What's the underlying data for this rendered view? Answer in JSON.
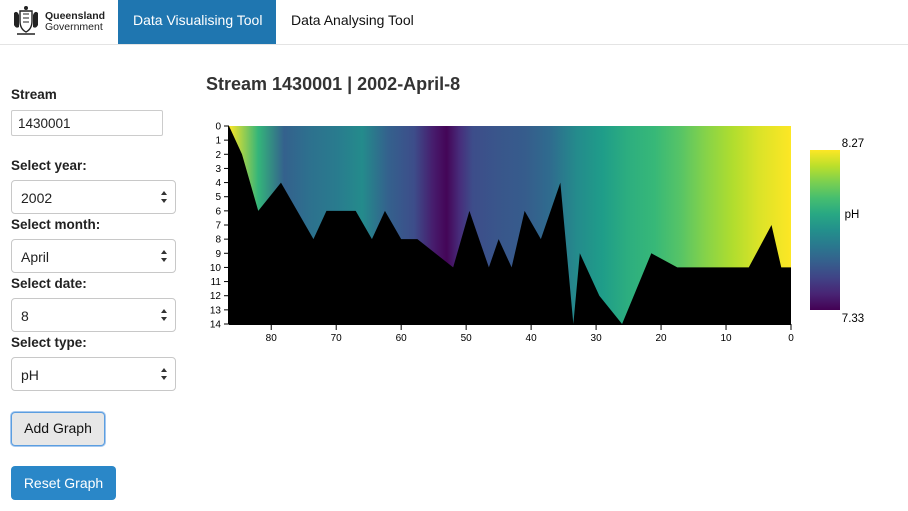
{
  "brand": {
    "line1": "Queensland",
    "line2": "Government"
  },
  "nav": {
    "tabs": [
      {
        "label": "Data Visualising Tool",
        "active": true
      },
      {
        "label": "Data Analysing Tool",
        "active": false
      }
    ],
    "accent": "#1f76b0"
  },
  "sidebar": {
    "stream_label": "Stream",
    "stream_value": "1430001",
    "year_label": "Select year:",
    "year_value": "2002",
    "month_label": "Select month:",
    "month_value": "April",
    "date_label": "Select date:",
    "date_value": "8",
    "type_label": "Select type:",
    "type_value": "pH",
    "add_button": "Add Graph",
    "reset_button": "Reset Graph"
  },
  "chart_data": {
    "type": "heatmap",
    "title": "Stream 1430001 | 2002-April-8",
    "x_ticks": [
      "80",
      "70",
      "60",
      "50",
      "40",
      "30",
      "20",
      "10",
      "0"
    ],
    "x_range": [
      86.5,
      0
    ],
    "y_ticks": [
      "0",
      "1",
      "2",
      "3",
      "4",
      "5",
      "6",
      "7",
      "8",
      "9",
      "10",
      "11",
      "12",
      "13",
      "14"
    ],
    "y_range": [
      0,
      14
    ],
    "colorbar": {
      "label": "pH",
      "min_label": "7.33",
      "max_label": "8.27",
      "min": 7.33,
      "max": 8.27,
      "colormap": "viridis"
    },
    "value_profile": {
      "x": [
        86.5,
        82,
        78,
        74,
        70,
        66,
        62,
        58,
        55,
        53,
        51,
        49,
        45,
        41,
        37,
        33,
        29,
        25,
        21,
        17,
        13,
        9,
        5,
        2,
        0
      ],
      "ph": [
        8.27,
        7.95,
        7.62,
        7.68,
        7.72,
        7.78,
        7.62,
        7.55,
        7.4,
        7.34,
        7.45,
        7.55,
        7.58,
        7.6,
        7.66,
        7.78,
        7.85,
        7.92,
        7.96,
        8.02,
        8.1,
        8.16,
        8.22,
        8.25,
        8.27
      ]
    },
    "bed_profile": {
      "x": [
        86.5,
        84.5,
        82,
        78.5,
        73.5,
        71.5,
        67,
        64.5,
        62.5,
        60,
        57.5,
        52,
        49.5,
        46.5,
        45,
        43,
        41,
        38.5,
        35.5,
        33.5,
        32.5,
        29.5,
        26,
        21.5,
        17.5,
        13,
        6.5,
        3,
        1.5,
        0
      ],
      "depth": [
        0,
        2,
        6,
        4,
        8,
        6,
        6,
        8,
        6,
        8,
        8,
        10,
        6,
        10,
        8,
        10,
        6,
        8,
        4,
        14,
        9,
        12,
        14,
        9,
        10,
        10,
        10,
        7,
        10,
        10
      ]
    }
  }
}
